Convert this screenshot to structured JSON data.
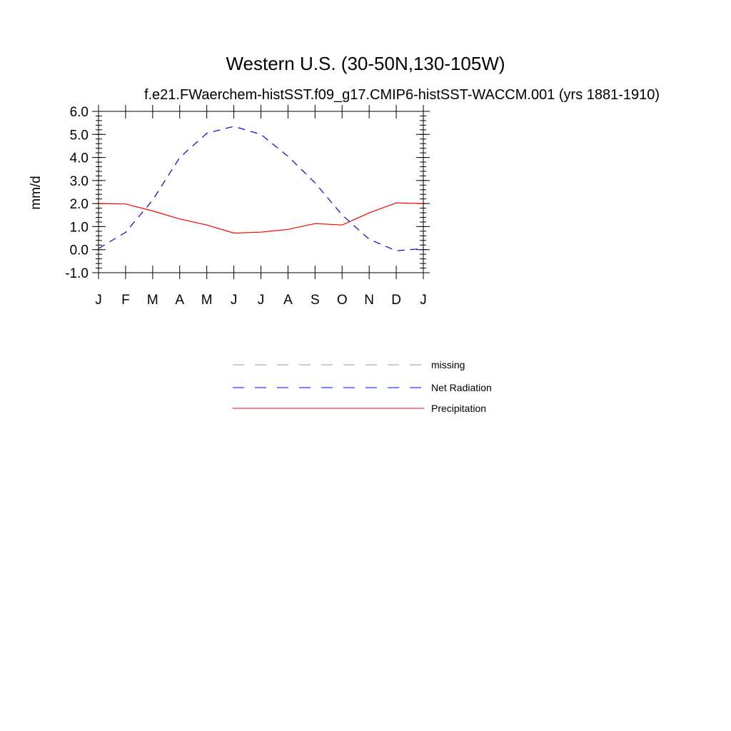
{
  "chart_data": {
    "type": "line",
    "title": "Western U.S. (30-50N,130-105W)",
    "subtitle": "f.e21.FWaerchem-histSST.f09_g17.CMIP6-histSST-WACCM.001 (yrs 1881-1910)",
    "xlabel": "",
    "ylabel": "mm/d",
    "ylim": [
      -1.0,
      6.0
    ],
    "yticks": [
      "6.0",
      "5.0",
      "4.0",
      "3.0",
      "2.0",
      "1.0",
      "0.0",
      "-1.0"
    ],
    "categories": [
      "J",
      "F",
      "M",
      "A",
      "M",
      "J",
      "J",
      "A",
      "S",
      "O",
      "N",
      "D",
      "J"
    ],
    "grid": false,
    "legend_position": "below",
    "series": [
      {
        "name": "Net Radiation",
        "color": "#0000ff",
        "dash": "dashed",
        "values": [
          0.05,
          0.75,
          2.15,
          4.0,
          5.05,
          5.35,
          5.0,
          4.05,
          2.9,
          1.5,
          0.45,
          -0.05,
          0.05
        ]
      },
      {
        "name": "Precipitation",
        "color": "#ff0000",
        "dash": "solid",
        "values": [
          2.0,
          1.98,
          1.68,
          1.33,
          1.07,
          0.72,
          0.76,
          0.88,
          1.13,
          1.07,
          1.6,
          2.03,
          2.0
        ]
      }
    ],
    "legend": [
      {
        "label": "missing",
        "color": "#999999",
        "dash": "dashed"
      },
      {
        "label": "Net Radiation",
        "color": "#0000ff",
        "dash": "dashed"
      },
      {
        "label": "Precipitation",
        "color": "#ff0000",
        "dash": "solid"
      }
    ]
  }
}
